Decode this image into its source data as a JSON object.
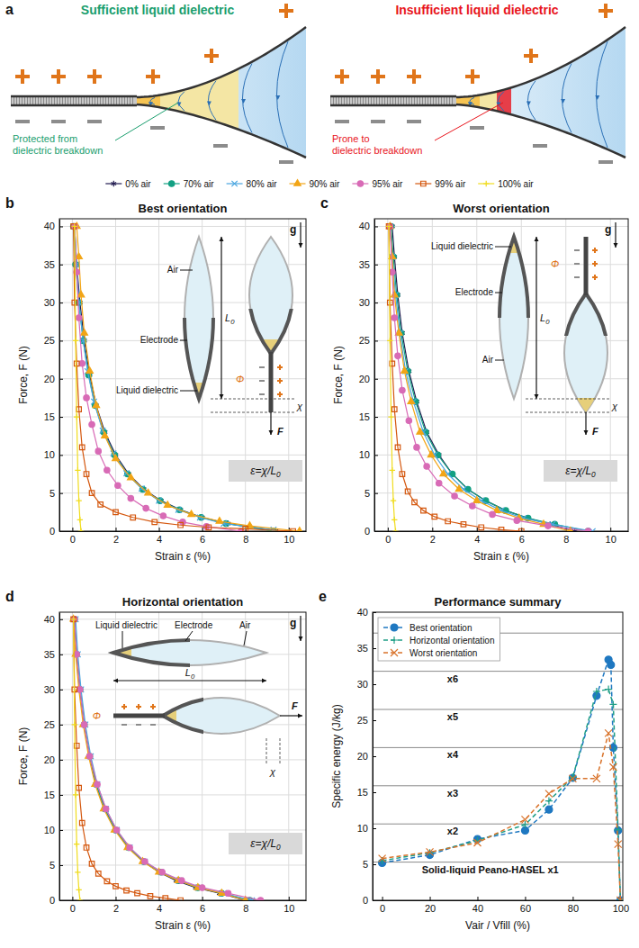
{
  "diagram": {
    "panel_label": "a",
    "left": {
      "title": "Sufficient liquid dielectric",
      "color": "#1a9e6e",
      "note": [
        "Protected from",
        "dielectric breakdown"
      ]
    },
    "right": {
      "title": "Insufficient liquid dielectric",
      "color": "#e8141c",
      "note": [
        "Prone to",
        "dielectric breakdown"
      ]
    }
  },
  "chart_data": [
    {
      "type": "line",
      "panel_label": "b",
      "title": "Best orientation",
      "x_label": "Strain ε (%)",
      "y_label": "Force, F (N)",
      "xlim": [
        -0.6,
        10.8
      ],
      "ylim": [
        0,
        41
      ],
      "xticks": [
        0,
        2,
        4,
        6,
        8,
        10
      ],
      "yticks": [
        0,
        5,
        10,
        15,
        20,
        25,
        30,
        35,
        40
      ],
      "grid": true,
      "legend": "top",
      "annotations": {
        "air": "Air",
        "electrode": "Electrode",
        "liquid": "Liquid dielectric",
        "length": "L0",
        "voltage": "Φ",
        "force": "F",
        "displacement": "χ",
        "gravity": "g",
        "strain_formula": "ε=χ/L0"
      },
      "series": [
        {
          "name": "0% air",
          "color": "#221c50",
          "marker": "star",
          "line_style": "solid",
          "x": [
            0.1,
            0.2,
            0.35,
            0.55,
            0.8,
            1.1,
            1.5,
            2.0,
            2.6,
            3.3,
            4.1,
            5.0,
            6.0,
            7.2,
            9.4
          ],
          "values": [
            40,
            35,
            30,
            25,
            20.5,
            16.5,
            13,
            10,
            7.5,
            5.5,
            4,
            2.8,
            1.8,
            1,
            0
          ]
        },
        {
          "name": "70% air",
          "color": "#13a083",
          "marker": "circle",
          "line_style": "solid",
          "x": [
            0.05,
            0.15,
            0.3,
            0.5,
            0.75,
            1.05,
            1.45,
            1.95,
            2.55,
            3.25,
            4.05,
            4.95,
            5.95,
            7.1,
            9.3
          ],
          "values": [
            40,
            35,
            30,
            25,
            20.5,
            16.5,
            13,
            10,
            7.5,
            5.5,
            4,
            2.8,
            1.8,
            1,
            0
          ]
        },
        {
          "name": "80% air",
          "color": "#4aa6e0",
          "marker": "x",
          "line_style": "solid",
          "x": [
            0.1,
            0.2,
            0.3,
            0.5,
            0.7,
            1.0,
            1.4,
            1.9,
            2.5,
            3.2,
            4.0,
            4.9,
            5.9,
            7.0,
            9.3
          ],
          "values": [
            40,
            35,
            30,
            25,
            21,
            17,
            13.2,
            10.2,
            7.6,
            5.6,
            4,
            2.8,
            1.8,
            1,
            0.2
          ]
        },
        {
          "name": "90% air",
          "color": "#f2a516",
          "marker": "triangle",
          "line_style": "solid",
          "x": [
            0.2,
            0.3,
            0.4,
            0.55,
            0.8,
            1.1,
            1.5,
            2.0,
            2.7,
            3.5,
            4.4,
            5.5,
            6.8,
            8.2,
            10.5
          ],
          "values": [
            40,
            36,
            31,
            26,
            21,
            16.5,
            12.5,
            9.5,
            7,
            5,
            3.4,
            2.2,
            1.3,
            0.7,
            0
          ]
        },
        {
          "name": "95% air",
          "color": "#d86bb6",
          "marker": "circle",
          "line_style": "solid",
          "x": [
            0.1,
            0.2,
            0.3,
            0.45,
            0.65,
            0.9,
            1.2,
            1.6,
            2.1,
            2.7,
            3.4,
            4.2,
            5.1,
            6.2,
            7.8
          ],
          "values": [
            40,
            34,
            28,
            22,
            17.5,
            14,
            10.5,
            8,
            6,
            4.3,
            3,
            2,
            1.2,
            0.6,
            0
          ]
        },
        {
          "name": "99% air",
          "color": "#d4570e",
          "marker": "square",
          "line_style": "solid",
          "x": [
            0.05,
            0.1,
            0.2,
            0.3,
            0.45,
            0.65,
            0.9,
            1.3,
            2.0,
            2.8,
            3.8,
            5.0,
            6.3,
            8.0,
            10.2
          ],
          "values": [
            40,
            30,
            22,
            16,
            11,
            7.5,
            5,
            3.5,
            2.5,
            1.8,
            1.2,
            0.8,
            0.5,
            0.3,
            0
          ]
        },
        {
          "name": "100% air",
          "color": "#f0dc1e",
          "marker": "plus",
          "line_style": "solid",
          "x": [
            0.1,
            0.15,
            0.2,
            0.25,
            0.3,
            0.35,
            0.4
          ],
          "values": [
            40,
            25,
            15,
            8,
            4,
            1.5,
            0
          ]
        }
      ]
    },
    {
      "type": "line",
      "panel_label": "c",
      "title": "Worst orientation",
      "x_label": "Strain ε (%)",
      "y_label": "Force, F (N)",
      "xlim": [
        -0.6,
        10.8
      ],
      "ylim": [
        0,
        41
      ],
      "xticks": [
        0,
        2,
        4,
        6,
        8,
        10
      ],
      "yticks": [
        0,
        5,
        10,
        15,
        20,
        25,
        30,
        35,
        40
      ],
      "grid": true,
      "annotations": {
        "air": "Air",
        "electrode": "Electrode",
        "liquid": "Liquid dielectric",
        "length": "L0",
        "voltage": "Φ",
        "force": "F",
        "displacement": "χ",
        "gravity": "g",
        "strain_formula": "ε=χ/L0"
      },
      "series": [
        {
          "color": "#221c50",
          "marker": "star",
          "line_style": "solid",
          "x": [
            0.2,
            0.3,
            0.45,
            0.65,
            0.95,
            1.3,
            1.75,
            2.3,
            2.9,
            3.6,
            4.4,
            5.3,
            6.3,
            7.3,
            8.4
          ],
          "values": [
            40,
            36,
            31,
            26,
            21,
            17,
            13,
            10,
            7.5,
            5.5,
            4,
            2.7,
            1.7,
            0.9,
            0
          ]
        },
        {
          "color": "#13a083",
          "marker": "circle",
          "line_style": "solid",
          "x": [
            0.15,
            0.25,
            0.4,
            0.6,
            0.9,
            1.25,
            1.7,
            2.25,
            2.9,
            3.6,
            4.4,
            5.3,
            6.3,
            7.5,
            9.0
          ],
          "values": [
            40,
            36,
            31,
            26,
            21,
            17,
            13,
            10,
            7.5,
            5.5,
            4,
            2.7,
            1.7,
            0.9,
            0
          ]
        },
        {
          "color": "#4aa6e0",
          "marker": "x",
          "line_style": "solid",
          "x": [
            0.1,
            0.2,
            0.35,
            0.55,
            0.8,
            1.15,
            1.6,
            2.1,
            2.7,
            3.4,
            4.2,
            5.1,
            6.1,
            7.4,
            9.2
          ],
          "values": [
            40,
            36,
            31,
            26,
            21,
            17,
            13,
            10,
            7.5,
            5.5,
            4,
            2.7,
            1.7,
            0.9,
            0
          ]
        },
        {
          "color": "#f2a516",
          "marker": "triangle",
          "line_style": "solid",
          "x": [
            0.1,
            0.2,
            0.3,
            0.5,
            0.75,
            1.05,
            1.45,
            1.95,
            2.5,
            3.2,
            4.0,
            4.9,
            5.9,
            7.0,
            8.2
          ],
          "values": [
            40,
            36,
            31,
            26,
            21,
            17,
            13,
            10,
            7.5,
            5.5,
            4,
            2.7,
            1.7,
            0.9,
            0
          ]
        },
        {
          "color": "#d86bb6",
          "marker": "circle",
          "line_style": "solid",
          "x": [
            0.1,
            0.2,
            0.3,
            0.45,
            0.65,
            0.95,
            1.3,
            1.75,
            2.3,
            3.0,
            3.8,
            4.7,
            5.8,
            7.2,
            9.0
          ],
          "values": [
            40,
            34,
            28,
            23,
            18.5,
            14.5,
            11,
            8.5,
            6.3,
            4.6,
            3.3,
            2.2,
            1.4,
            0.7,
            0
          ]
        },
        {
          "color": "#d4570e",
          "marker": "square",
          "line_style": "solid",
          "x": [
            0.05,
            0.1,
            0.2,
            0.3,
            0.45,
            0.65,
            0.9,
            1.2,
            1.6,
            2.1,
            2.7,
            3.4,
            4.2,
            5.1,
            6.0
          ],
          "values": [
            40,
            30,
            22,
            16,
            11,
            7.5,
            5.2,
            3.8,
            2.7,
            1.9,
            1.3,
            0.9,
            0.5,
            0.2,
            0
          ]
        },
        {
          "color": "#f0dc1e",
          "marker": "plus",
          "line_style": "solid",
          "x": [
            0.05,
            0.1,
            0.15,
            0.2,
            0.25,
            0.3,
            0.35
          ],
          "values": [
            40,
            25,
            15,
            8,
            4,
            1.5,
            0
          ]
        }
      ]
    },
    {
      "type": "line",
      "panel_label": "d",
      "title": "Horizontal orientation",
      "x_label": "Strain ε (%)",
      "y_label": "Force, F (N)",
      "xlim": [
        -0.6,
        10.8
      ],
      "ylim": [
        0,
        41
      ],
      "xticks": [
        0,
        2,
        4,
        6,
        8,
        10
      ],
      "yticks": [
        0,
        5,
        10,
        15,
        20,
        25,
        30,
        35,
        40
      ],
      "grid": true,
      "annotations": {
        "air": "Air",
        "electrode": "Electrode",
        "liquid": "Liquid dielectric",
        "length": "L0",
        "voltage": "Φ",
        "force": "F",
        "displacement": "χ",
        "gravity": "g",
        "strain_formula": "ε=χ/L0"
      },
      "series": [
        {
          "color": "#221c50",
          "marker": "star",
          "line_style": "solid",
          "x": [
            0.1,
            0.2,
            0.35,
            0.55,
            0.8,
            1.1,
            1.5,
            2.0,
            2.6,
            3.3,
            4.0,
            4.8,
            5.7,
            6.8,
            8.0
          ],
          "values": [
            40,
            35,
            30,
            25,
            20.5,
            16.5,
            13,
            10,
            7.5,
            5.5,
            4,
            2.8,
            1.8,
            1,
            0
          ]
        },
        {
          "color": "#13a083",
          "marker": "circle",
          "line_style": "solid",
          "x": [
            0.1,
            0.2,
            0.35,
            0.55,
            0.8,
            1.1,
            1.5,
            2.0,
            2.6,
            3.3,
            4.1,
            4.9,
            5.8,
            6.9,
            8.2
          ],
          "values": [
            40,
            35,
            30,
            25,
            20.5,
            16.5,
            13,
            10,
            7.5,
            5.5,
            4,
            2.8,
            1.8,
            1,
            0
          ]
        },
        {
          "color": "#4aa6e0",
          "marker": "x",
          "line_style": "solid",
          "x": [
            0.15,
            0.25,
            0.4,
            0.6,
            0.85,
            1.15,
            1.55,
            2.05,
            2.65,
            3.35,
            4.1,
            5.0,
            5.9,
            7.0,
            8.3
          ],
          "values": [
            40,
            35,
            30,
            25,
            20.5,
            16.5,
            13,
            10,
            7.5,
            5.5,
            4,
            2.8,
            1.8,
            1,
            0
          ]
        },
        {
          "color": "#f2a516",
          "marker": "triangle",
          "line_style": "solid",
          "x": [
            0.05,
            0.15,
            0.3,
            0.5,
            0.75,
            1.05,
            1.45,
            1.95,
            2.55,
            3.25,
            4.0,
            4.9,
            5.8,
            6.9,
            8.0
          ],
          "values": [
            40,
            35,
            30,
            25,
            20.5,
            16.5,
            13,
            10,
            7.5,
            5.5,
            4,
            2.8,
            1.8,
            1,
            0
          ]
        },
        {
          "color": "#d86bb6",
          "marker": "circle",
          "line_style": "solid",
          "x": [
            0.1,
            0.2,
            0.35,
            0.55,
            0.8,
            1.15,
            1.55,
            2.05,
            2.65,
            3.35,
            4.15,
            5.05,
            6.0,
            7.2,
            8.7
          ],
          "values": [
            40,
            35,
            30,
            25,
            20.5,
            16.5,
            13,
            10,
            7.5,
            5.5,
            4,
            2.8,
            1.8,
            1,
            0
          ]
        },
        {
          "color": "#d4570e",
          "marker": "square",
          "line_style": "solid",
          "x": [
            0.05,
            0.1,
            0.2,
            0.3,
            0.45,
            0.65,
            0.9,
            1.2,
            1.6,
            2.0,
            2.5,
            3.0,
            3.6,
            4.3,
            5.0
          ],
          "values": [
            40,
            30,
            22,
            16,
            11,
            7.5,
            5.2,
            3.8,
            2.7,
            2.0,
            1.4,
            1.0,
            0.6,
            0.3,
            0
          ]
        },
        {
          "color": "#f0dc1e",
          "marker": "plus",
          "line_style": "solid",
          "x": [
            0.05,
            0.1,
            0.15,
            0.2,
            0.25,
            0.3,
            0.35
          ],
          "values": [
            40,
            25,
            15,
            8,
            4,
            1.5,
            0
          ]
        }
      ]
    },
    {
      "type": "line",
      "panel_label": "e",
      "title": "Performance summary",
      "x_label": "Vair / Vfill (%)",
      "y_label": "Specific energy (J/kg)",
      "xlim": [
        -4,
        101
      ],
      "ylim": [
        0,
        40
      ],
      "xticks": [
        0,
        20,
        40,
        60,
        80,
        100
      ],
      "yticks": [
        0,
        5,
        10,
        15,
        20,
        25,
        30,
        35,
        40
      ],
      "grid": false,
      "legend": "upper left",
      "reference_lines": [
        5.3,
        10.6,
        15.9,
        21.2,
        26.5,
        31.8,
        37.1
      ],
      "reference_labels": [
        "Solid-liquid Peano-HASEL x1",
        "x2",
        "x3",
        "x4",
        "x5",
        "x6",
        null
      ],
      "series": [
        {
          "name": "Best orientation",
          "color": "#1f78c1",
          "marker": "circle",
          "line_style": "dashed",
          "x": [
            0,
            20,
            40,
            60,
            70,
            80,
            90,
            95,
            96,
            97,
            99,
            100
          ],
          "values": [
            5.2,
            6.3,
            8.5,
            9.7,
            12.6,
            17.0,
            28.4,
            33.4,
            32.7,
            21.2,
            9.7,
            0
          ]
        },
        {
          "name": "Horizontal orientation",
          "color": "#1f9e86",
          "marker": "plus",
          "line_style": "dashed",
          "x": [
            0,
            20,
            40,
            60,
            70,
            80,
            90,
            95,
            97,
            99,
            100
          ],
          "values": [
            5.5,
            6.6,
            8.3,
            10.5,
            13.8,
            17.1,
            29.0,
            29.3,
            27.2,
            9.8,
            0
          ]
        },
        {
          "name": "Worst orientation",
          "color": "#d9732b",
          "marker": "x",
          "line_style": "dashed",
          "x": [
            0,
            20,
            40,
            60,
            70,
            80,
            90,
            95,
            97,
            99,
            100
          ],
          "values": [
            5.8,
            6.7,
            8.0,
            11.2,
            14.8,
            16.9,
            16.9,
            23.2,
            18.5,
            7.8,
            0
          ]
        }
      ]
    }
  ]
}
